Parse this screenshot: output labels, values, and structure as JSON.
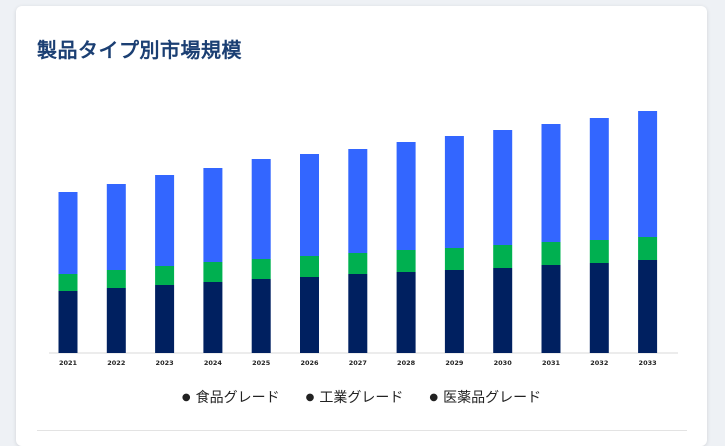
{
  "header": {
    "title": "製品タイプ別市場規模"
  },
  "colors": {
    "food": "#002060",
    "industrial": "#00b050",
    "pharma": "#3366ff"
  },
  "legend": [
    {
      "label": "食品グレード",
      "key": "food"
    },
    {
      "label": "工業グレード",
      "key": "industrial"
    },
    {
      "label": "医薬品グレード",
      "key": "pharma"
    }
  ],
  "chart_data": {
    "type": "bar",
    "stacked": true,
    "title": "製品タイプ別市場規模",
    "categories": [
      "2021",
      "2022",
      "2023",
      "2024",
      "2025",
      "2026",
      "2027",
      "2028",
      "2029",
      "2030",
      "2031",
      "2032",
      "2033"
    ],
    "series": [
      {
        "name": "食品グレード",
        "key": "food",
        "values": [
          62,
          65,
          68,
          71,
          74,
          76,
          79,
          81,
          83,
          85,
          88,
          90,
          93
        ]
      },
      {
        "name": "工業グレード",
        "key": "industrial",
        "values": [
          17,
          18,
          19,
          20,
          20,
          21,
          21,
          22,
          22,
          23,
          23,
          23,
          23
        ]
      },
      {
        "name": "医薬品グレード",
        "key": "pharma",
        "values": [
          82,
          86,
          91,
          94,
          100,
          102,
          104,
          108,
          112,
          115,
          118,
          122,
          126
        ]
      }
    ],
    "ylim": [
      0,
      250
    ],
    "grid": false,
    "legend_position": "bottom"
  }
}
